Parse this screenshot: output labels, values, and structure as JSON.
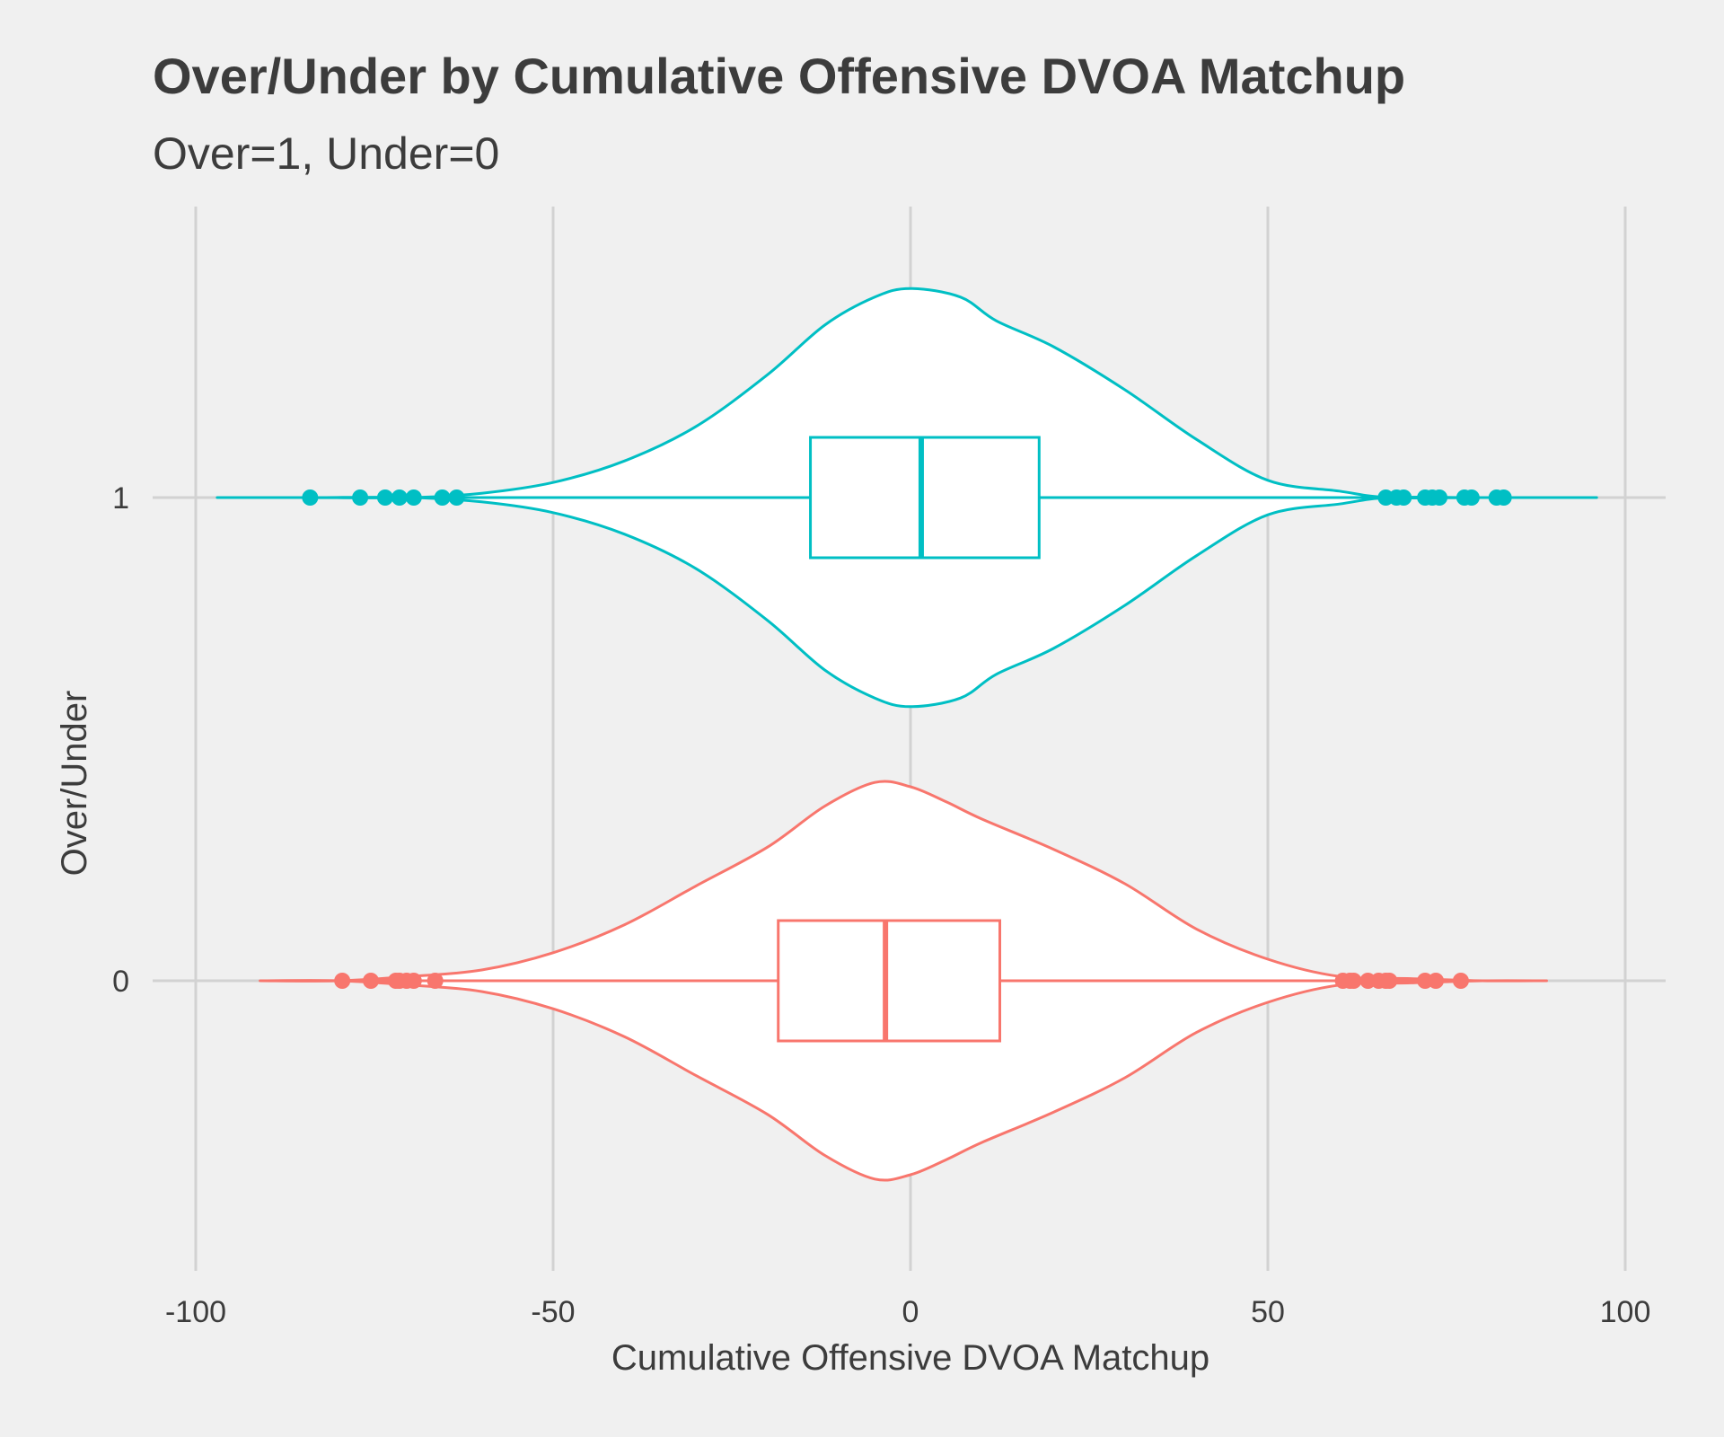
{
  "chart_data": {
    "type": "violin",
    "title": "Over/Under by Cumulative Offensive DVOA Matchup",
    "subtitle": "Over=1, Under=0",
    "xlabel": "Cumulative Offensive DVOA Matchup",
    "ylabel": "Over/Under",
    "xlim": [
      -105,
      105
    ],
    "x_ticks": [
      -100,
      -50,
      0,
      50,
      100
    ],
    "x_tick_labels": [
      "-100",
      "-50",
      "0",
      "50",
      "100"
    ],
    "y_categories": [
      "0",
      "1"
    ],
    "orientation": "horizontal",
    "grid": true,
    "legend": "none",
    "series": [
      {
        "category": "0",
        "color": "#f8766d",
        "violin_range": [
          -91,
          89
        ],
        "density_profile": [
          [
            -91,
            0.0
          ],
          [
            -80,
            0.0
          ],
          [
            -70,
            0.02
          ],
          [
            -60,
            0.05
          ],
          [
            -50,
            0.13
          ],
          [
            -40,
            0.26
          ],
          [
            -30,
            0.44
          ],
          [
            -20,
            0.62
          ],
          [
            -12,
            0.81
          ],
          [
            -5,
            0.92
          ],
          [
            0,
            0.9
          ],
          [
            5,
            0.83
          ],
          [
            10,
            0.75
          ],
          [
            20,
            0.61
          ],
          [
            30,
            0.45
          ],
          [
            40,
            0.24
          ],
          [
            50,
            0.1
          ],
          [
            60,
            0.02
          ],
          [
            70,
            0.01
          ],
          [
            80,
            0.0
          ],
          [
            89,
            0.0
          ]
        ],
        "box": {
          "q1": -18.5,
          "median": -3.5,
          "q3": 12.5,
          "whisker_low": -66,
          "whisker_high": 60
        },
        "outliers": [
          -79.5,
          -75.5,
          -72,
          -71.5,
          -70.5,
          -69.5,
          -66.5,
          60.5,
          61.5,
          62,
          64,
          65.5,
          66.5,
          67,
          72,
          73.5,
          77
        ]
      },
      {
        "category": "1",
        "color": "#00bfc4",
        "violin_range": [
          -97,
          96
        ],
        "density_profile": [
          [
            -97,
            0.0
          ],
          [
            -85,
            0.0
          ],
          [
            -70,
            0.0
          ],
          [
            -60,
            0.02
          ],
          [
            -50,
            0.07
          ],
          [
            -40,
            0.17
          ],
          [
            -30,
            0.33
          ],
          [
            -20,
            0.57
          ],
          [
            -12,
            0.8
          ],
          [
            -5,
            0.93
          ],
          [
            0,
            0.97
          ],
          [
            7,
            0.93
          ],
          [
            12,
            0.82
          ],
          [
            20,
            0.7
          ],
          [
            30,
            0.5
          ],
          [
            40,
            0.27
          ],
          [
            50,
            0.08
          ],
          [
            60,
            0.03
          ],
          [
            67,
            0.0
          ],
          [
            80,
            0.0
          ],
          [
            96,
            0.0
          ]
        ],
        "box": {
          "q1": -14,
          "median": 1.5,
          "q3": 18,
          "whisker_low": -62,
          "whisker_high": 66
        },
        "outliers": [
          -84,
          -77,
          -73.5,
          -71.5,
          -69.5,
          -65.5,
          -63.5,
          66.5,
          68,
          69,
          72,
          73,
          74,
          77.5,
          78.5,
          82,
          83
        ]
      }
    ]
  }
}
